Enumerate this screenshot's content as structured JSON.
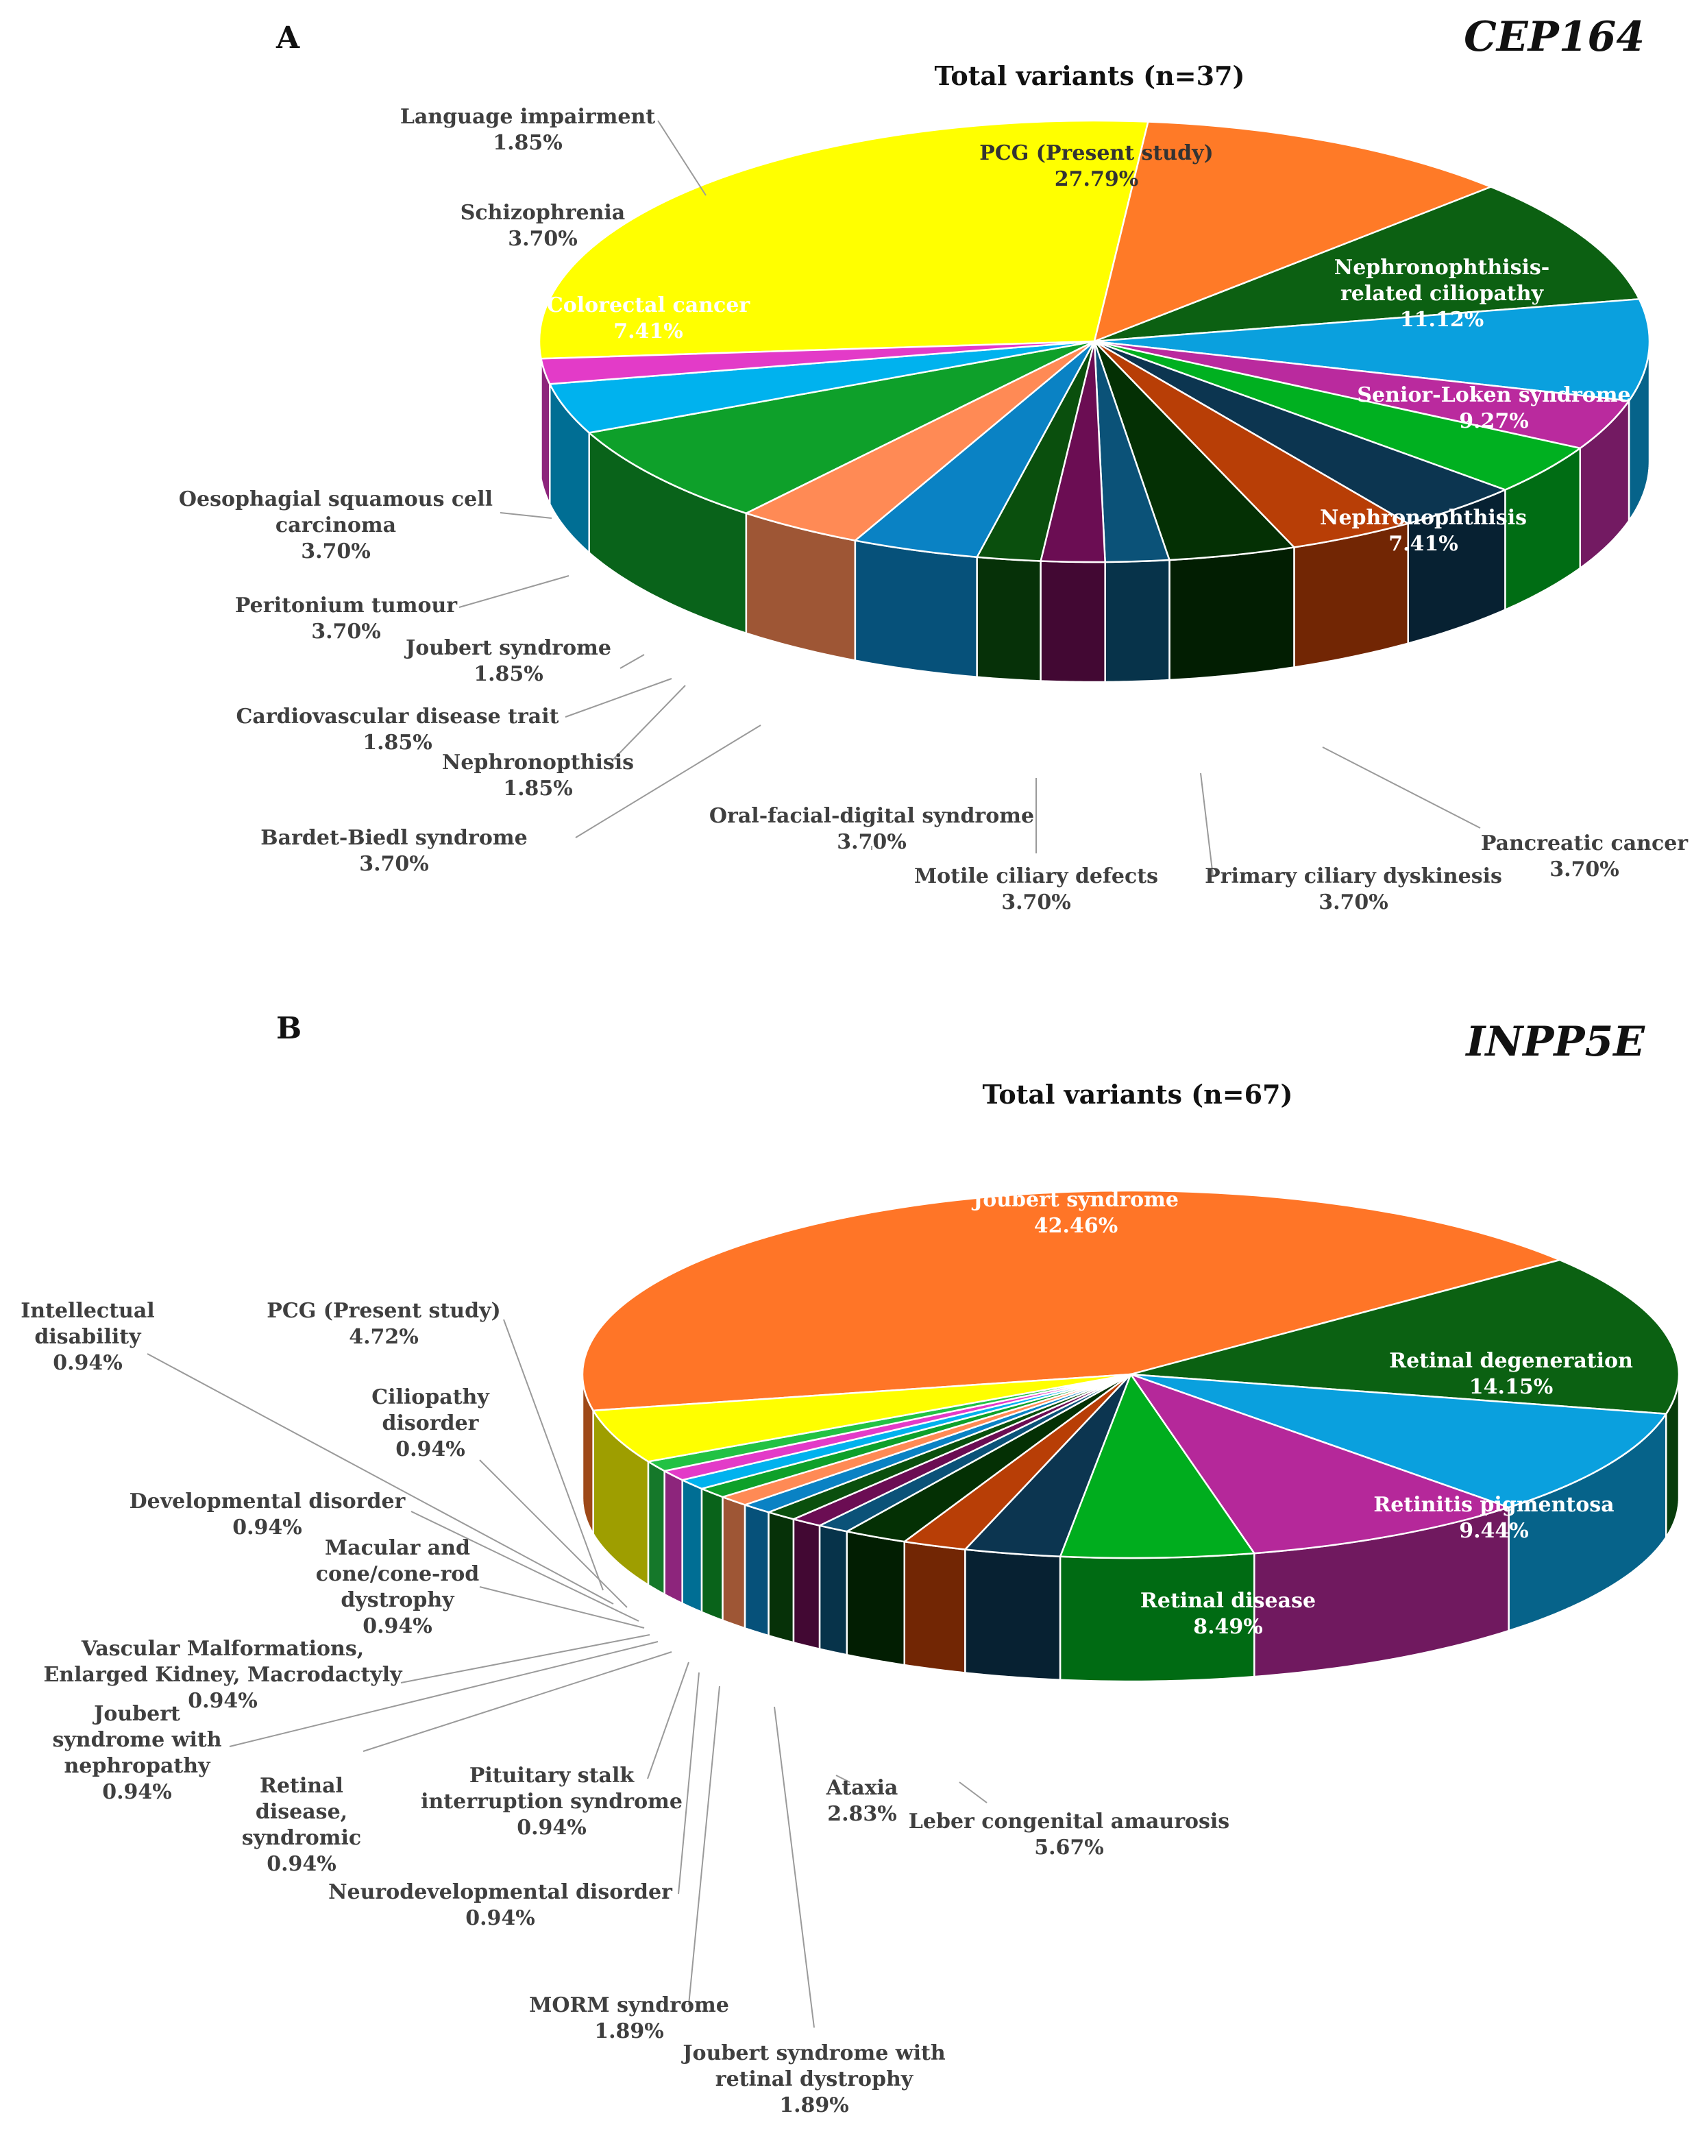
{
  "chart_data": [
    {
      "type": "pie",
      "panel": "A",
      "gene": "CEP164",
      "title": "Total variants (n=37)",
      "slices": [
        {
          "label": [
            "PCG (Present study)"
          ],
          "value": 27.79,
          "display": "27.79%",
          "color": "#FFFF00",
          "text": "#333333",
          "inside": true
        },
        {
          "label": [
            "Nephronophthisis-",
            "related ciliopathy"
          ],
          "value": 11.12,
          "display": "11.12%",
          "color": "#FF7A27",
          "text": "#ffffff",
          "inside": true
        },
        {
          "label": [
            "Senior-Loken syndrome"
          ],
          "value": 9.27,
          "display": "9.27%",
          "color": "#0C6012",
          "text": "#ffffff",
          "inside": true
        },
        {
          "label": [
            "Nephronophthisis"
          ],
          "value": 7.41,
          "display": "7.41%",
          "color": "#0AA0DE",
          "text": "#ffffff",
          "inside": true
        },
        {
          "label": [
            "Pancreatic cancer"
          ],
          "value": 3.7,
          "display": "3.70%",
          "color": "#BA2A9E",
          "text": "#333333",
          "inside": false
        },
        {
          "label": [
            "Primary ciliary dyskinesis"
          ],
          "value": 3.7,
          "display": "3.70%",
          "color": "#00B020",
          "text": "#333333",
          "inside": false
        },
        {
          "label": [
            "Motile ciliary defects"
          ],
          "value": 3.7,
          "display": "3.70%",
          "color": "#0C3550",
          "text": "#333333",
          "inside": false
        },
        {
          "label": [
            "Oral-facial-digital syndrome"
          ],
          "value": 3.7,
          "display": "3.70%",
          "color": "#B83E06",
          "text": "#333333",
          "inside": false
        },
        {
          "label": [
            "Bardet-Biedl syndrome"
          ],
          "value": 3.7,
          "display": "3.70%",
          "color": "#043004",
          "text": "#333333",
          "inside": false
        },
        {
          "label": [
            "Nephronopthisis"
          ],
          "value": 1.85,
          "display": "1.85%",
          "color": "#0B5278",
          "text": "#333333",
          "inside": false
        },
        {
          "label": [
            "Cardiovascular disease trait"
          ],
          "value": 1.85,
          "display": "1.85%",
          "color": "#6B0D53",
          "text": "#333333",
          "inside": false
        },
        {
          "label": [
            "Joubert syndrome"
          ],
          "value": 1.85,
          "display": "1.85%",
          "color": "#0A4F0D",
          "text": "#333333",
          "inside": false
        },
        {
          "label": [
            "Peritonium tumour"
          ],
          "value": 3.7,
          "display": "3.70%",
          "color": "#0A82C4",
          "text": "#333333",
          "inside": false
        },
        {
          "label": [
            "Oesophagial squamous cell",
            "carcinoma"
          ],
          "value": 3.7,
          "display": "3.70%",
          "color": "#FF8A55",
          "text": "#333333",
          "inside": false
        },
        {
          "label": [
            "Colorectal cancer"
          ],
          "value": 7.41,
          "display": "7.41%",
          "color": "#0EA02A",
          "text": "#ffffff",
          "inside": true
        },
        {
          "label": [
            "Schizophrenia"
          ],
          "value": 3.7,
          "display": "3.70%",
          "color": "#00B2EE",
          "text": "#333333",
          "inside": false
        },
        {
          "label": [
            "Language impairment"
          ],
          "value": 1.85,
          "display": "1.85%",
          "color": "#E33BC8",
          "text": "#333333",
          "inside": false
        }
      ]
    },
    {
      "type": "pie",
      "panel": "B",
      "gene": "INPP5E",
      "title": "Total variants (n=67)",
      "slices": [
        {
          "label": [
            "Joubert syndrome"
          ],
          "value": 42.46,
          "display": "42.46%",
          "color": "#FF7527",
          "text": "#ffffff",
          "inside": true
        },
        {
          "label": [
            "Retinal degeneration"
          ],
          "value": 14.15,
          "display": "14.15%",
          "color": "#0B6112",
          "text": "#ffffff",
          "inside": true
        },
        {
          "label": [
            "Retinitis pigmentosa"
          ],
          "value": 9.44,
          "display": "9.44%",
          "color": "#0AA0DE",
          "text": "#ffffff",
          "inside": true
        },
        {
          "label": [
            "Retinal disease"
          ],
          "value": 8.49,
          "display": "8.49%",
          "color": "#B5289A",
          "text": "#ffffff",
          "inside": true
        },
        {
          "label": [
            "Leber congenital amaurosis"
          ],
          "value": 5.67,
          "display": "5.67%",
          "color": "#00AD1E",
          "text": "#333333",
          "inside": false
        },
        {
          "label": [
            "Ataxia"
          ],
          "value": 2.83,
          "display": "2.83%",
          "color": "#0C3550",
          "text": "#333333",
          "inside": false
        },
        {
          "label": [
            "Joubert syndrome with",
            "retinal dystrophy"
          ],
          "value": 1.89,
          "display": "1.89%",
          "color": "#B83E06",
          "text": "#333333",
          "inside": false
        },
        {
          "label": [
            "MORM syndrome"
          ],
          "value": 1.89,
          "display": "1.89%",
          "color": "#043004",
          "text": "#333333",
          "inside": false
        },
        {
          "label": [
            "Neurodevelopmental disorder"
          ],
          "value": 0.94,
          "display": "0.94%",
          "color": "#0B5278",
          "text": "#333333",
          "inside": false
        },
        {
          "label": [
            "Pituitary stalk",
            "interruption syndrome"
          ],
          "value": 0.94,
          "display": "0.94%",
          "color": "#6B0D53",
          "text": "#333333",
          "inside": false
        },
        {
          "label": [
            "Retinal",
            "disease,",
            "syndromic"
          ],
          "value": 0.94,
          "display": "0.94%",
          "color": "#0A4F0D",
          "text": "#333333",
          "inside": false
        },
        {
          "label": [
            "Joubert",
            "syndrome with",
            "nephropathy"
          ],
          "value": 0.94,
          "display": "0.94%",
          "color": "#0A82C4",
          "text": "#333333",
          "inside": false
        },
        {
          "label": [
            "Vascular Malformations,",
            "Enlarged Kidney, Macrodactyly"
          ],
          "value": 0.94,
          "display": "0.94%",
          "color": "#FF8A55",
          "text": "#333333",
          "inside": false
        },
        {
          "label": [
            "Macular and",
            "cone/cone-rod",
            "dystrophy"
          ],
          "value": 0.94,
          "display": "0.94%",
          "color": "#0EA02A",
          "text": "#333333",
          "inside": false
        },
        {
          "label": [
            "Developmental disorder"
          ],
          "value": 0.94,
          "display": "0.94%",
          "color": "#00B2EE",
          "text": "#333333",
          "inside": false
        },
        {
          "label": [
            "Ciliopathy",
            "disorder"
          ],
          "value": 0.94,
          "display": "0.94%",
          "color": "#E33BC8",
          "text": "#333333",
          "inside": false
        },
        {
          "label": [
            "Intellectual",
            "disability"
          ],
          "value": 0.94,
          "display": "0.94%",
          "color": "#22C244",
          "text": "#333333",
          "inside": false
        },
        {
          "label": [
            "PCG (Present study)"
          ],
          "value": 4.72,
          "display": "4.72%",
          "color": "#FFFF00",
          "text": "#333333",
          "inside": false
        }
      ]
    }
  ]
}
